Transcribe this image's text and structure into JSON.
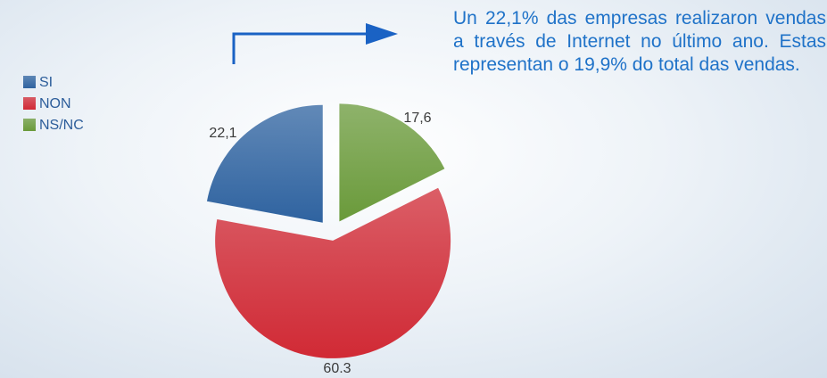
{
  "chart_data": {
    "type": "pie",
    "categories": [
      "SI",
      "NON",
      "NS/NC"
    ],
    "values": [
      22.1,
      60.3,
      17.6
    ],
    "value_labels": [
      "22,1",
      "60.3",
      "17,6"
    ],
    "colors": [
      "#2f63a0",
      "#d12a35",
      "#6a9a3a"
    ],
    "annotation": "Un 22,1% das empresas realizaron vendas a través de Internet no último ano. Estas representan o 19,9% do total das vendas."
  }
}
